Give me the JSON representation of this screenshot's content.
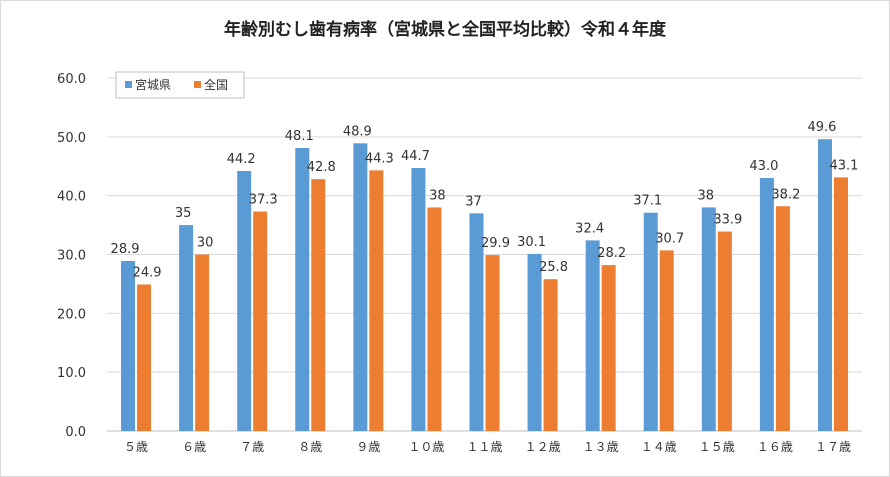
{
  "chart_data": {
    "type": "bar",
    "title": "年齢別むし歯有病率（宮城県と全国平均比較）令和４年度",
    "xlabel": "",
    "ylabel": "",
    "ylim": [
      0,
      60
    ],
    "y_ticks": [
      "0.0",
      "10.0",
      "20.0",
      "30.0",
      "40.0",
      "50.0",
      "60.0"
    ],
    "grid": true,
    "legend_position": "top-left",
    "categories": [
      "５歳",
      "６歳",
      "７歳",
      "８歳",
      "９歳",
      "１０歳",
      "１１歳",
      "１２歳",
      "１３歳",
      "１４歳",
      "１５歳",
      "１６歳",
      "１７歳"
    ],
    "series": [
      {
        "name": "宮城県",
        "color": "#5b9bd5",
        "values": [
          28.9,
          35,
          44.2,
          48.1,
          48.9,
          44.7,
          37,
          30.1,
          32.4,
          37.1,
          38,
          43.0,
          49.6
        ],
        "labels": [
          "28.9",
          "35",
          "44.2",
          "48.1",
          "48.9",
          "44.7",
          "37",
          "30.1",
          "32.4",
          "37.1",
          "38",
          "43.0",
          "49.6"
        ]
      },
      {
        "name": "全国",
        "color": "#ed7d31",
        "values": [
          24.9,
          30,
          37.3,
          42.8,
          44.3,
          38,
          29.9,
          25.8,
          28.2,
          30.7,
          33.9,
          38.2,
          43.1
        ],
        "labels": [
          "24.9",
          "30",
          "37.3",
          "42.8",
          "44.3",
          "38",
          "29.9",
          "25.8",
          "28.2",
          "30.7",
          "33.9",
          "38.2",
          "43.1"
        ]
      }
    ]
  }
}
